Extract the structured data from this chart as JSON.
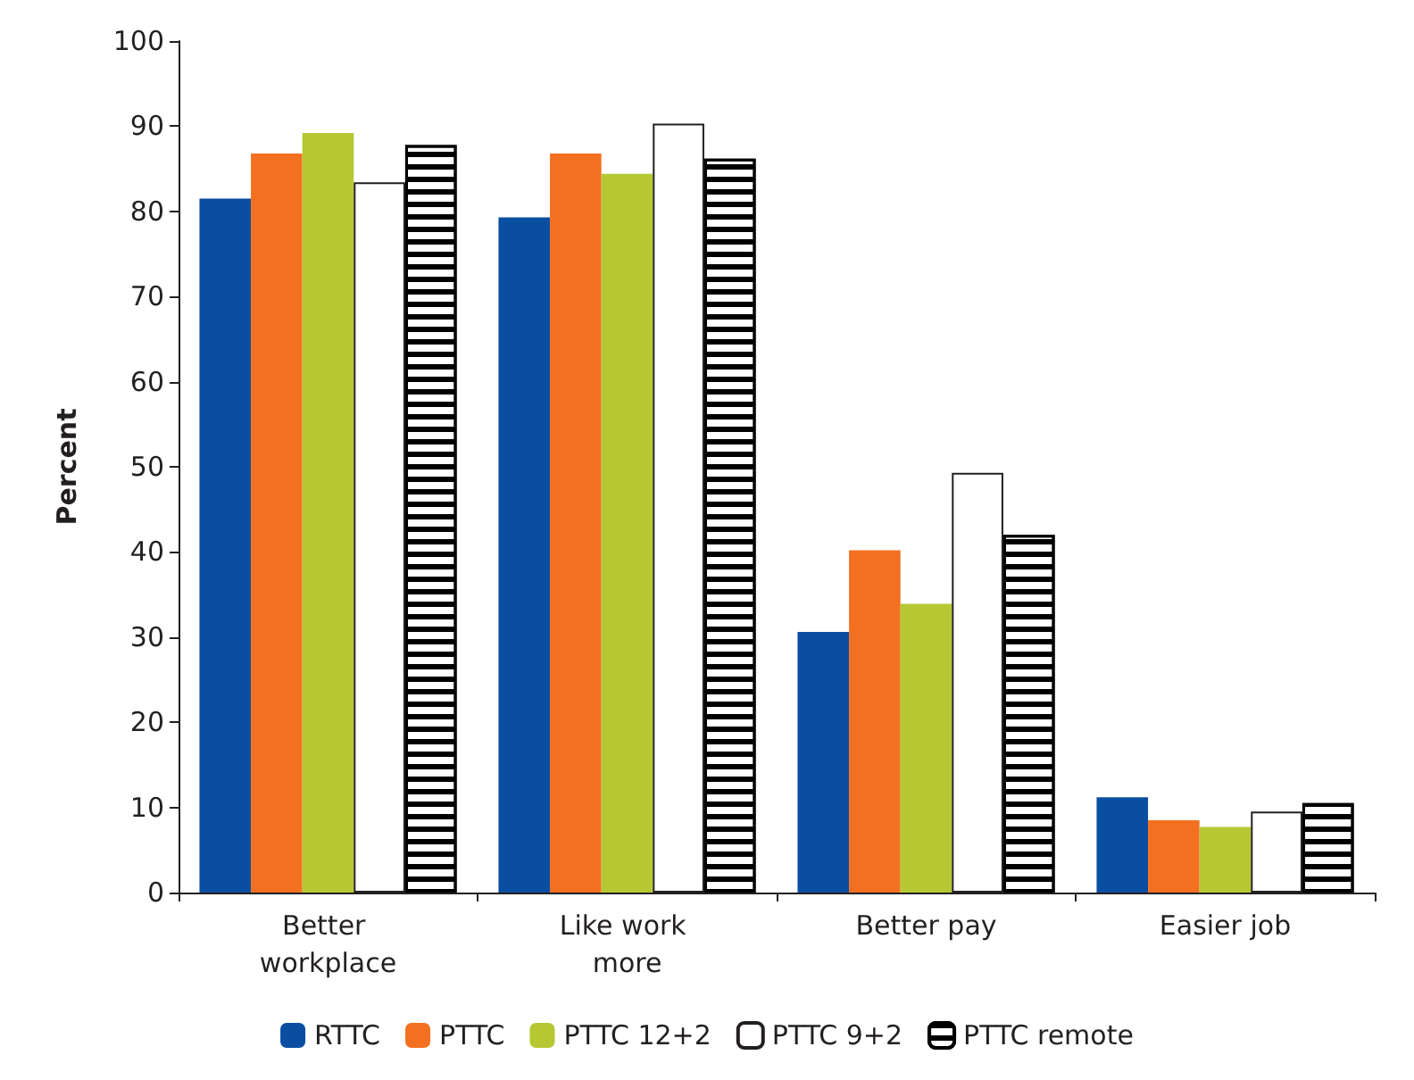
{
  "chart_data": {
    "type": "bar",
    "ylabel": "Percent",
    "categories": [
      "Better workplace",
      "Like work more",
      "Better pay",
      "Easier job"
    ],
    "series": [
      {
        "name": "RTTC",
        "color": "#0a4ea2",
        "values": [
          81.5,
          79.3,
          30.6,
          11.2
        ]
      },
      {
        "name": "PTTC",
        "color": "#f37021",
        "values": [
          86.8,
          86.8,
          40.2,
          8.5
        ]
      },
      {
        "name": "PTTC 12+2",
        "color": "#b5c833",
        "values": [
          89.2,
          84.4,
          33.9,
          7.7
        ]
      },
      {
        "name": "PTTC 9+2",
        "color": "#ffffff",
        "values": [
          83.4,
          90.3,
          49.3,
          9.5
        ]
      },
      {
        "name": "PTTC remote",
        "color": "#000000",
        "values": [
          87.8,
          86.2,
          42.0,
          10.5
        ]
      }
    ],
    "ylim": [
      0,
      100
    ],
    "yticks": [
      0,
      10,
      20,
      30,
      40,
      50,
      60,
      70,
      80,
      90,
      100
    ],
    "grid": false,
    "legend": "bottom"
  }
}
